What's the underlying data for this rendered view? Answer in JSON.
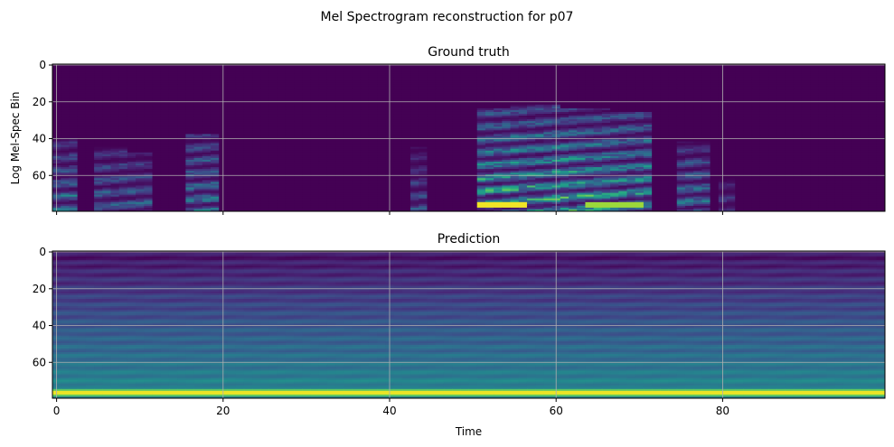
{
  "figure": {
    "suptitle": "Mel Spectrogram reconstruction for p07"
  },
  "chart_data": [
    {
      "type": "heatmap",
      "title": "Ground truth",
      "xlabel": "",
      "ylabel": "Log Mel-Spec Bin",
      "xlim": [
        -0.5,
        99.5
      ],
      "ylim": [
        79.5,
        -0.5
      ],
      "x_ticks": [
        0,
        20,
        40,
        60,
        80
      ],
      "y_ticks": [
        0,
        20,
        40,
        60
      ],
      "x_tick_labels_visible": false,
      "grid": true,
      "colormap": "viridis",
      "time_frames": 100,
      "mel_bins": 80,
      "description": "sparse speech energy bursts (brightest around time 52-70, bins 73-79)"
    },
    {
      "type": "heatmap",
      "title": "Prediction",
      "xlabel": "Time",
      "ylabel": "",
      "xlim": [
        -0.5,
        99.5
      ],
      "ylim": [
        79.5,
        -0.5
      ],
      "x_ticks": [
        0,
        20,
        40,
        60,
        80
      ],
      "y_ticks": [
        0,
        20,
        40,
        60
      ],
      "x_tick_labels_visible": true,
      "grid": true,
      "colormap": "viridis",
      "time_frames": 100,
      "mel_bins": 80,
      "description": "time-invariant horizontal banding, peak intensity at bins 75-78"
    }
  ]
}
